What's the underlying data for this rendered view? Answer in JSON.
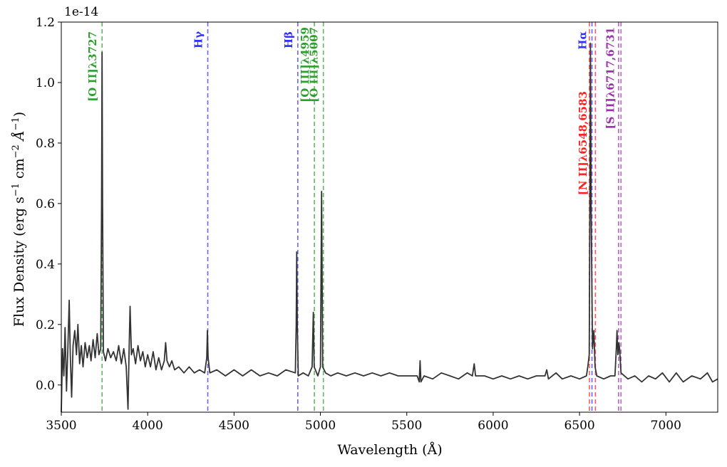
{
  "chart_data": {
    "type": "line",
    "title": "",
    "xlabel": "Wavelength (Å)",
    "ylabel_parts": {
      "prefix": "Flux Density (erg s",
      "sup1": "−1",
      "mid": " cm",
      "sup2": "−2",
      "unit": " Å",
      "sup3": "−1",
      "close": ")"
    },
    "y_offset_text": "1e-14",
    "xlim": [
      3500,
      7300
    ],
    "ylim": [
      -0.09,
      1.2
    ],
    "y_scale_factor": 1e-14,
    "grid": false,
    "legend": "none",
    "x_ticks": [
      3500,
      4000,
      4500,
      5000,
      5500,
      6000,
      6500,
      7000
    ],
    "x_tick_labels": [
      "3500",
      "4000",
      "4500",
      "5000",
      "5500",
      "6000",
      "6500",
      "7000"
    ],
    "y_ticks": [
      0.0,
      0.2,
      0.4,
      0.6,
      0.8,
      1.0,
      1.2
    ],
    "y_tick_labels": [
      "0.0",
      "0.2",
      "0.4",
      "0.6",
      "0.8",
      "1.0",
      "1.2"
    ],
    "spectrum_color": "#333333",
    "spectrum_anchors": [
      [
        3500,
        -0.09
      ],
      [
        3507,
        0.12
      ],
      [
        3515,
        0.03
      ],
      [
        3522,
        0.19
      ],
      [
        3530,
        -0.02
      ],
      [
        3538,
        0.12
      ],
      [
        3546,
        0.28
      ],
      [
        3552,
        0.1
      ],
      [
        3560,
        -0.04
      ],
      [
        3568,
        0.13
      ],
      [
        3578,
        0.18
      ],
      [
        3588,
        0.1
      ],
      [
        3596,
        0.2
      ],
      [
        3606,
        0.07
      ],
      [
        3616,
        0.13
      ],
      [
        3626,
        0.06
      ],
      [
        3638,
        0.14
      ],
      [
        3650,
        0.09
      ],
      [
        3662,
        0.13
      ],
      [
        3672,
        0.08
      ],
      [
        3684,
        0.15
      ],
      [
        3696,
        0.09
      ],
      [
        3708,
        0.17
      ],
      [
        3718,
        0.1
      ],
      [
        3728,
        0.12
      ],
      [
        3733,
        0.6
      ],
      [
        3736,
        1.1
      ],
      [
        3739,
        0.6
      ],
      [
        3744,
        0.11
      ],
      [
        3756,
        0.08
      ],
      [
        3770,
        0.12
      ],
      [
        3786,
        0.09
      ],
      [
        3802,
        0.11
      ],
      [
        3818,
        0.08
      ],
      [
        3832,
        0.13
      ],
      [
        3848,
        0.07
      ],
      [
        3862,
        0.12
      ],
      [
        3876,
        0.06
      ],
      [
        3886,
        -0.08
      ],
      [
        3892,
        0.1
      ],
      [
        3898,
        0.26
      ],
      [
        3906,
        0.1
      ],
      [
        3916,
        0.12
      ],
      [
        3930,
        0.07
      ],
      [
        3944,
        0.13
      ],
      [
        3958,
        0.08
      ],
      [
        3972,
        0.11
      ],
      [
        3986,
        0.06
      ],
      [
        4000,
        0.1
      ],
      [
        4016,
        0.06
      ],
      [
        4032,
        0.11
      ],
      [
        4048,
        0.05
      ],
      [
        4064,
        0.09
      ],
      [
        4080,
        0.05
      ],
      [
        4096,
        0.08
      ],
      [
        4104,
        0.14
      ],
      [
        4112,
        0.08
      ],
      [
        4126,
        0.06
      ],
      [
        4140,
        0.08
      ],
      [
        4156,
        0.05
      ],
      [
        4180,
        0.06
      ],
      [
        4210,
        0.04
      ],
      [
        4240,
        0.06
      ],
      [
        4270,
        0.04
      ],
      [
        4300,
        0.05
      ],
      [
        4330,
        0.04
      ],
      [
        4342,
        0.09
      ],
      [
        4346,
        0.18
      ],
      [
        4350,
        0.09
      ],
      [
        4360,
        0.04
      ],
      [
        4400,
        0.05
      ],
      [
        4450,
        0.03
      ],
      [
        4500,
        0.05
      ],
      [
        4550,
        0.03
      ],
      [
        4600,
        0.05
      ],
      [
        4650,
        0.03
      ],
      [
        4700,
        0.04
      ],
      [
        4750,
        0.03
      ],
      [
        4800,
        0.05
      ],
      [
        4855,
        0.04
      ],
      [
        4860,
        0.2
      ],
      [
        4863,
        0.44
      ],
      [
        4866,
        0.2
      ],
      [
        4872,
        0.03
      ],
      [
        4900,
        0.04
      ],
      [
        4930,
        0.03
      ],
      [
        4952,
        0.06
      ],
      [
        4959,
        0.24
      ],
      [
        4964,
        0.06
      ],
      [
        4985,
        0.03
      ],
      [
        5000,
        0.06
      ],
      [
        5007,
        0.64
      ],
      [
        5013,
        0.06
      ],
      [
        5030,
        0.04
      ],
      [
        5060,
        0.03
      ],
      [
        5100,
        0.04
      ],
      [
        5150,
        0.03
      ],
      [
        5200,
        0.04
      ],
      [
        5250,
        0.03
      ],
      [
        5300,
        0.04
      ],
      [
        5350,
        0.03
      ],
      [
        5400,
        0.04
      ],
      [
        5450,
        0.03
      ],
      [
        5500,
        0.03
      ],
      [
        5560,
        0.03
      ],
      [
        5572,
        0.01
      ],
      [
        5577,
        0.08
      ],
      [
        5582,
        0.01
      ],
      [
        5600,
        0.03
      ],
      [
        5650,
        0.02
      ],
      [
        5700,
        0.04
      ],
      [
        5750,
        0.03
      ],
      [
        5800,
        0.02
      ],
      [
        5850,
        0.04
      ],
      [
        5880,
        0.03
      ],
      [
        5890,
        0.07
      ],
      [
        5898,
        0.03
      ],
      [
        5950,
        0.03
      ],
      [
        6000,
        0.02
      ],
      [
        6050,
        0.03
      ],
      [
        6100,
        0.02
      ],
      [
        6150,
        0.03
      ],
      [
        6200,
        0.02
      ],
      [
        6250,
        0.03
      ],
      [
        6300,
        0.03
      ],
      [
        6310,
        0.05
      ],
      [
        6320,
        0.02
      ],
      [
        6364,
        0.04
      ],
      [
        6400,
        0.02
      ],
      [
        6450,
        0.03
      ],
      [
        6500,
        0.02
      ],
      [
        6540,
        0.03
      ],
      [
        6548,
        0.06
      ],
      [
        6556,
        0.1
      ],
      [
        6560,
        0.6
      ],
      [
        6563,
        1.13
      ],
      [
        6567,
        0.6
      ],
      [
        6575,
        0.12
      ],
      [
        6583,
        0.18
      ],
      [
        6590,
        0.06
      ],
      [
        6600,
        0.03
      ],
      [
        6640,
        0.02
      ],
      [
        6680,
        0.03
      ],
      [
        6705,
        0.03
      ],
      [
        6713,
        0.12
      ],
      [
        6717,
        0.18
      ],
      [
        6722,
        0.1
      ],
      [
        6728,
        0.14
      ],
      [
        6732,
        0.12
      ],
      [
        6740,
        0.04
      ],
      [
        6780,
        0.02
      ],
      [
        6820,
        0.03
      ],
      [
        6860,
        0.01
      ],
      [
        6900,
        0.03
      ],
      [
        6940,
        0.02
      ],
      [
        6980,
        0.04
      ],
      [
        7020,
        0.01
      ],
      [
        7060,
        0.04
      ],
      [
        7100,
        0.01
      ],
      [
        7150,
        0.03
      ],
      [
        7200,
        0.02
      ],
      [
        7240,
        0.04
      ],
      [
        7270,
        0.01
      ],
      [
        7300,
        0.02
      ]
    ],
    "emission_lines": [
      {
        "label": "[O II]λ3727",
        "wavelengths": [
          3736
        ],
        "color": "#2ca02c",
        "label_pos": "top"
      },
      {
        "label": "Hγ",
        "wavelengths": [
          4348
        ],
        "color": "#3333ff",
        "label_pos": "top"
      },
      {
        "label": "Hβ",
        "wavelengths": [
          4869
        ],
        "color": "#3333ff",
        "label_pos": "top"
      },
      {
        "label": "[O III]λ4959",
        "wavelengths": [
          4965
        ],
        "color": "#2ca02c",
        "label_pos": "low"
      },
      {
        "label": "[O III]λ5007",
        "wavelengths": [
          5017
        ],
        "color": "#2ca02c",
        "label_pos": "low"
      },
      {
        "label": "Hα",
        "wavelengths": [
          6572
        ],
        "color": "#3333ff",
        "label_pos": "top"
      },
      {
        "label": "[N II]λ6548,6583",
        "wavelengths": [
          6557,
          6592
        ],
        "color": "#ff2222",
        "label_pos": "lower"
      },
      {
        "label": "[S II]λ6717,6731",
        "wavelengths": [
          6726,
          6740
        ],
        "color": "#9933aa",
        "label_pos": "low"
      }
    ]
  }
}
